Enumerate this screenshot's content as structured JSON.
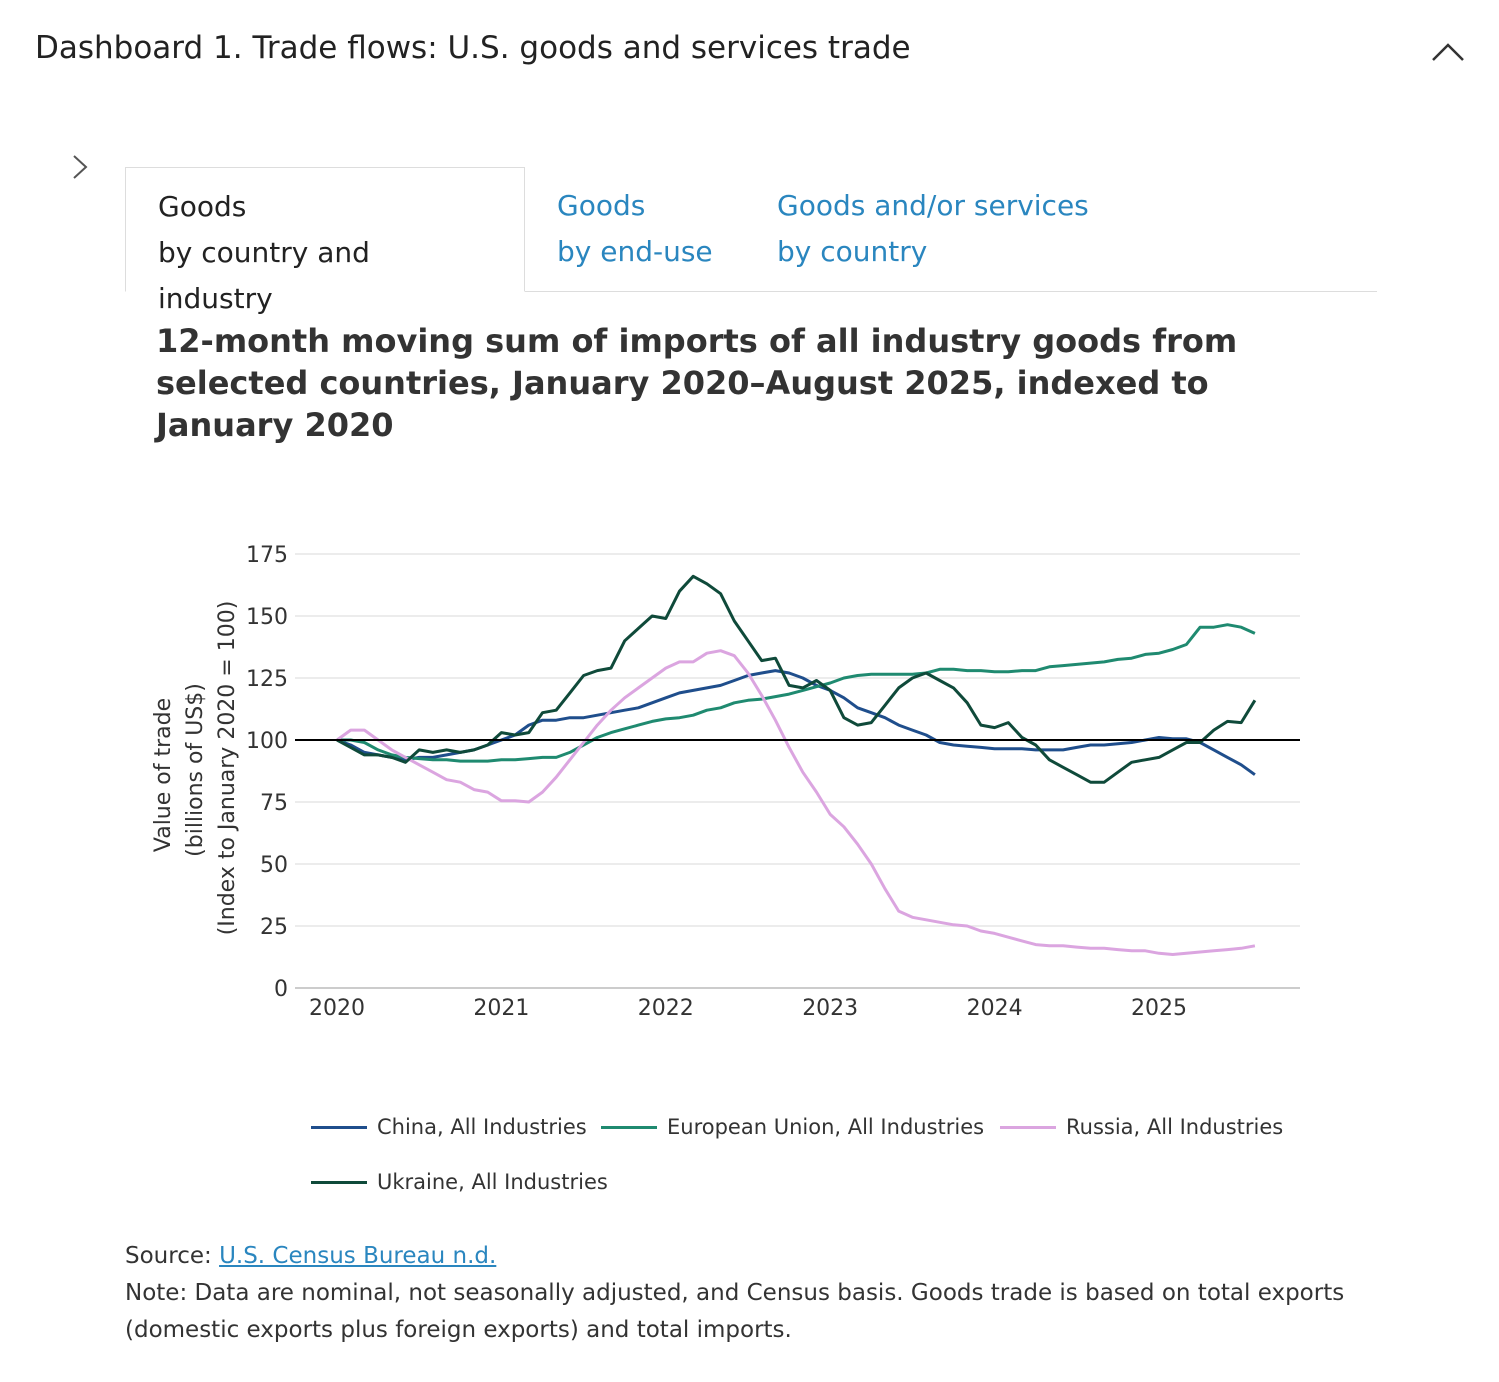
{
  "header": {
    "title": "Dashboard 1. Trade flows: U.S. goods and services trade",
    "collapse_icon": "chevron-up-icon",
    "expand_icon": "chevron-right-icon"
  },
  "tabs": [
    {
      "line1": "Goods",
      "line2": "by country and industry",
      "active": true
    },
    {
      "line1": "Goods",
      "line2": "by end-use",
      "active": false
    },
    {
      "line1": "Goods and/or services",
      "line2": "by country",
      "active": false
    }
  ],
  "colors": {
    "link": "#2a86bf",
    "reference_line": "#000000"
  },
  "chart_data": {
    "type": "line",
    "title": "12-month moving sum of imports of all industry goods from selected countries, January 2020–August 2025, indexed to January 2020",
    "ylabel_lines": [
      "Value of trade",
      "(billions of US$)",
      "(Index to January 2020 = 100)"
    ],
    "xlabel": "",
    "x_start": "2020-01",
    "x_end": "2025-08",
    "frequency": "monthly",
    "x_ticks": [
      "2020",
      "2021",
      "2022",
      "2023",
      "2024",
      "2025"
    ],
    "y_ticks": [
      0,
      25,
      50,
      75,
      100,
      125,
      150,
      175
    ],
    "ylim": [
      0,
      175
    ],
    "reference_line": 100,
    "grid": true,
    "legend_position": "bottom",
    "series": [
      {
        "name": "China, All Industries",
        "color": "#1f4e8c",
        "values": [
          100,
          98,
          95,
          94,
          93,
          92,
          93,
          93,
          94,
          95,
          96,
          98,
          100,
          102,
          106,
          108,
          108,
          109,
          109,
          110,
          111,
          112,
          113,
          115,
          117,
          119,
          120,
          121,
          122,
          124,
          126,
          127,
          128,
          127,
          125,
          122,
          120,
          117,
          113,
          111,
          109,
          106,
          104,
          102,
          99,
          98,
          97.5,
          97,
          96.5,
          96.5,
          96.5,
          96,
          96,
          96,
          97,
          98,
          98,
          98.5,
          99,
          100,
          101,
          100.5,
          100.5,
          99,
          96,
          93,
          90,
          86
        ]
      },
      {
        "name": "European Union, All Industries",
        "color": "#1f8a70",
        "values": [
          100,
          100,
          99,
          96,
          94,
          93,
          92.5,
          92,
          92,
          91.5,
          91.5,
          91.5,
          92,
          92,
          92.5,
          93,
          93,
          95,
          98,
          101,
          103,
          104.5,
          106,
          107.5,
          108.5,
          109,
          110,
          112,
          113,
          115,
          116,
          116.5,
          117.5,
          118.5,
          120,
          121.5,
          123,
          125,
          126,
          126.5,
          126.5,
          126.5,
          126.5,
          127,
          128.5,
          128.5,
          128,
          128,
          127.5,
          127.5,
          128,
          128,
          129.5,
          130,
          130.5,
          131,
          131.5,
          132.5,
          133,
          134.5,
          135,
          136.5,
          138.5,
          145.5,
          145.5,
          146.5,
          145.5,
          143
        ]
      },
      {
        "name": "Russia, All Industries",
        "color": "#dba5e0",
        "values": [
          100,
          104,
          104,
          100,
          96,
          93,
          90,
          87,
          84,
          83,
          80,
          79,
          75.5,
          75.5,
          75,
          79,
          85,
          92,
          99,
          106,
          112,
          117,
          121,
          125,
          129,
          131.5,
          131.5,
          135,
          136,
          134,
          127,
          118,
          108,
          97,
          87,
          79,
          70,
          65,
          58,
          50,
          40,
          31,
          28.5,
          27.5,
          26.5,
          25.5,
          25,
          23,
          22,
          20.5,
          19,
          17.5,
          17,
          17,
          16.5,
          16,
          16,
          15.5,
          15,
          15,
          14,
          13.5,
          14,
          14.5,
          15,
          15.5,
          16,
          17
        ]
      },
      {
        "name": "Ukraine, All Industries",
        "color": "#0f4a3a",
        "values": [
          100,
          97,
          94,
          94,
          93,
          91,
          96,
          95,
          96,
          95,
          96,
          98,
          103,
          102,
          103,
          111,
          112,
          119,
          126,
          128,
          129,
          140,
          145,
          150,
          149,
          160,
          166,
          163,
          159,
          148,
          140,
          132,
          133,
          122,
          121,
          124,
          120,
          109,
          106,
          107,
          114,
          121,
          125,
          127,
          124,
          121,
          115,
          106,
          105,
          107,
          101,
          98,
          92,
          89,
          86,
          83,
          83,
          87,
          91,
          92,
          93,
          96,
          99,
          99,
          104,
          107.5,
          107,
          116
        ]
      }
    ]
  },
  "footer": {
    "source_label": "Source: ",
    "source_link": "U.S. Census Bureau n.d.",
    "note": "Note: Data are nominal, not seasonally adjusted, and Census basis. Goods trade is based on total exports (domestic exports plus foreign exports) and total imports."
  }
}
